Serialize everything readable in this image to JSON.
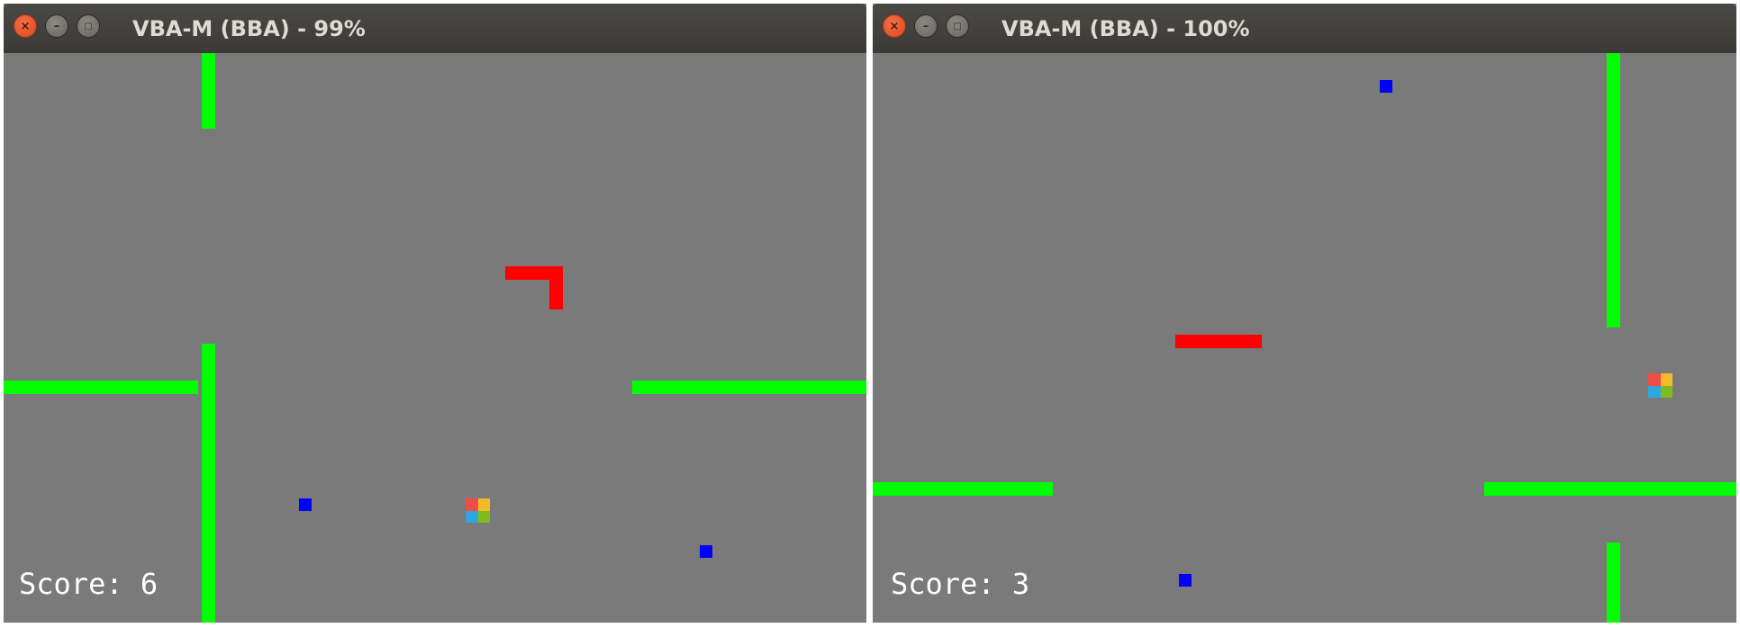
{
  "windows": [
    {
      "title": "VBA-M (BBA) - 99%",
      "score_text": "Score: 6",
      "buttons": {
        "close": "close-icon",
        "minimize": "minimize-icon",
        "maximize": "maximize-icon"
      }
    },
    {
      "title": "VBA-M (BBA) - 100%",
      "score_text": "Score: 3",
      "buttons": {
        "close": "close-icon",
        "minimize": "minimize-icon",
        "maximize": "maximize-icon"
      }
    }
  ],
  "colors": {
    "background": "#7a7a7a",
    "wall": "#00ff00",
    "snake": "#ff0000",
    "food": "#0000ff",
    "score_text": "#ffffff",
    "player_icon": [
      "#ee4c46",
      "#f4b92b",
      "#30a6e0",
      "#7fbb19"
    ]
  }
}
